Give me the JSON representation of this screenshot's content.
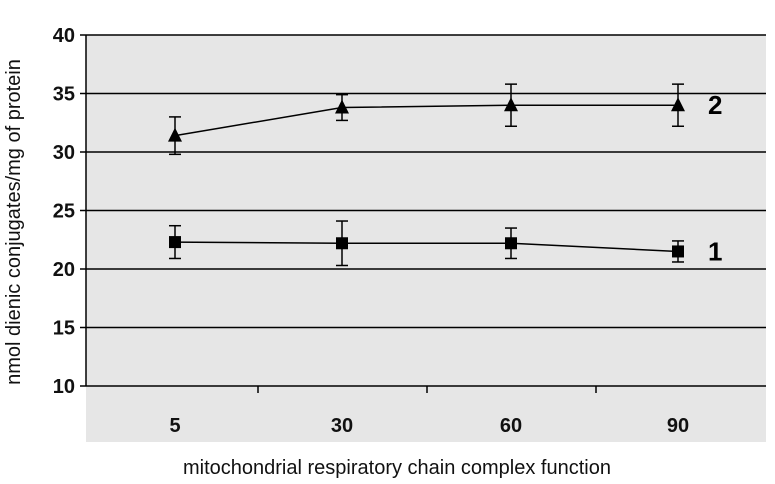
{
  "chart_data": {
    "type": "line",
    "title": "",
    "xlabel": "mitochondrial respiratory chain complex function",
    "ylabel": "nmol dienic conjugates/mg of protein",
    "categories": [
      "5",
      "30",
      "60",
      "90"
    ],
    "ylim": [
      10,
      40
    ],
    "yticks": [
      10,
      15,
      20,
      25,
      30,
      35,
      40
    ],
    "grid": true,
    "series": [
      {
        "name": "2",
        "marker": "triangle",
        "values": [
          31.4,
          33.8,
          34.0,
          34.0
        ],
        "error": [
          1.6,
          1.1,
          1.8,
          1.8
        ]
      },
      {
        "name": "1",
        "marker": "square",
        "values": [
          22.3,
          22.2,
          22.2,
          21.5
        ],
        "error": [
          1.4,
          1.9,
          1.3,
          0.9
        ]
      }
    ],
    "colors": {
      "plot_background": "#e6e6e6",
      "ink": "#000000"
    }
  }
}
